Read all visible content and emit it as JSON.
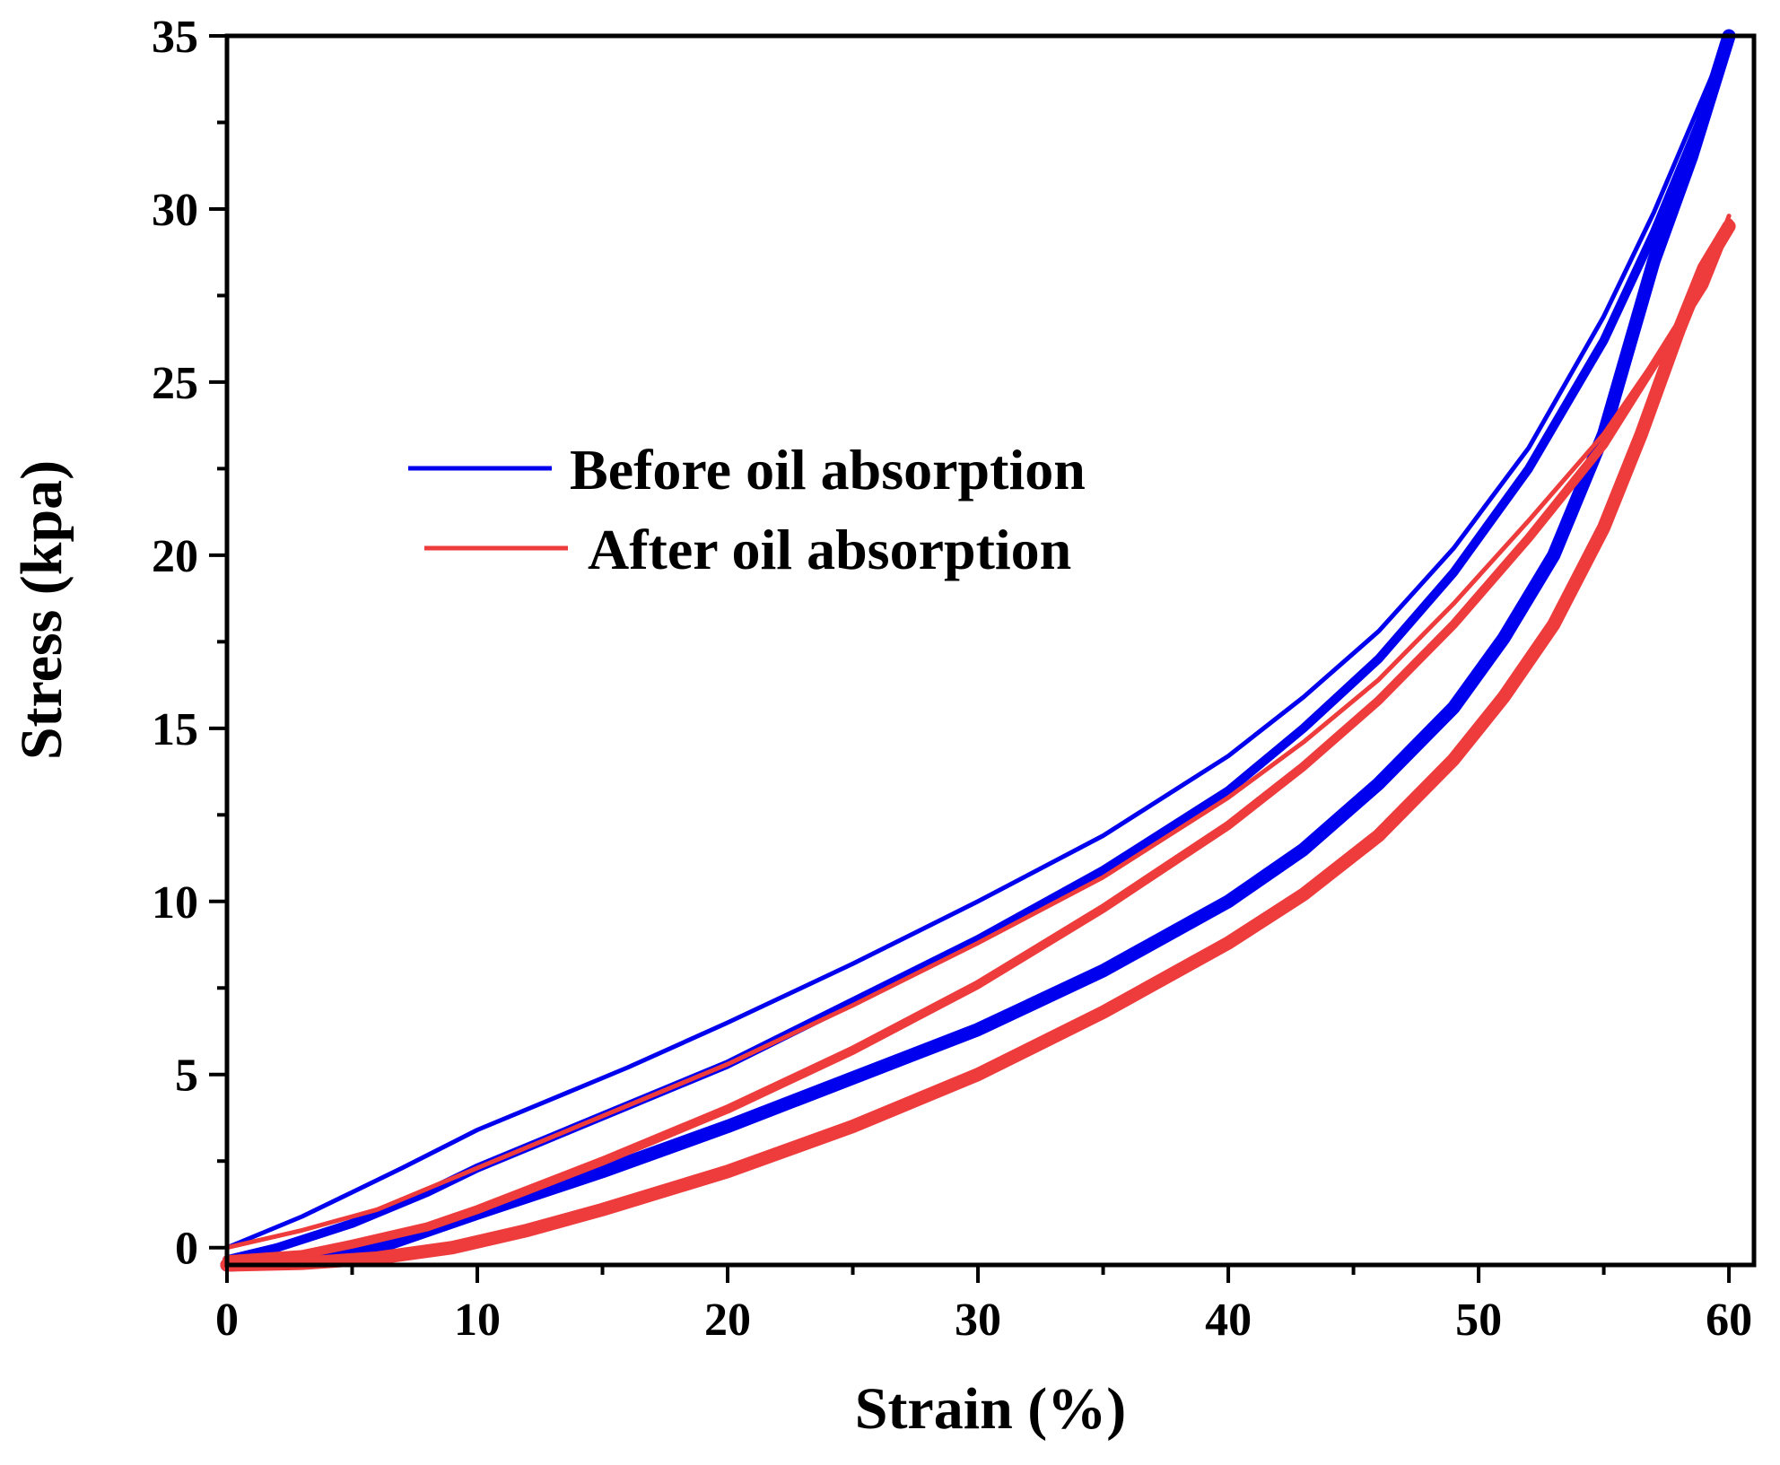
{
  "chart_data": {
    "type": "line",
    "title": "",
    "xlabel": "Strain (%)",
    "ylabel": "Stress (kpa)",
    "xlim": [
      0,
      61
    ],
    "ylim": [
      -0.5,
      35
    ],
    "xticks": [
      0,
      10,
      20,
      30,
      40,
      50,
      60
    ],
    "yticks": [
      0,
      5,
      10,
      15,
      20,
      25,
      30,
      35
    ],
    "grid": false,
    "legend_position": "upper-left-center",
    "series": [
      {
        "name": "Before oil absorption",
        "color": "#0000ee",
        "curves": [
          {
            "weight": "thin",
            "x": [
              0,
              3,
              5,
              7,
              10,
              13,
              16,
              20,
              25,
              30,
              35,
              40,
              43,
              46,
              49,
              52,
              55,
              57,
              59,
              60
            ],
            "y": [
              0,
              0.9,
              1.6,
              2.3,
              3.4,
              4.3,
              5.2,
              6.5,
              8.2,
              10.0,
              11.9,
              14.2,
              15.9,
              17.8,
              20.2,
              23.1,
              26.9,
              29.9,
              33.3,
              35.0
            ]
          },
          {
            "weight": "medium",
            "x": [
              0,
              2,
              5,
              8,
              10,
              13,
              16,
              20,
              25,
              30,
              35,
              40,
              43,
              46,
              49,
              52,
              55,
              57,
              59,
              60
            ],
            "y": [
              -0.35,
              0,
              0.7,
              1.6,
              2.3,
              3.2,
              4.1,
              5.3,
              7.1,
              8.9,
              10.9,
              13.2,
              15.0,
              17.0,
              19.5,
              22.5,
              26.2,
              29.3,
              32.8,
              35.0
            ]
          },
          {
            "weight": "thick",
            "x": [
              0,
              3,
              6,
              10,
              15,
              20,
              25,
              30,
              35,
              40,
              43,
              46,
              49,
              51,
              53,
              55,
              57,
              58.5,
              60
            ],
            "y": [
              -0.5,
              -0.4,
              0,
              1.0,
              2.2,
              3.5,
              4.9,
              6.3,
              8.0,
              10.0,
              11.5,
              13.4,
              15.6,
              17.6,
              20.0,
              23.5,
              28.5,
              31.5,
              35.0
            ]
          }
        ]
      },
      {
        "name": "After oil absorption",
        "color": "#ee3b3b",
        "curves": [
          {
            "weight": "thin",
            "x": [
              0,
              3,
              6,
              10,
              15,
              20,
              25,
              30,
              35,
              40,
              43,
              46,
              49,
              52,
              55,
              57,
              59,
              60
            ],
            "y": [
              0,
              0.5,
              1.1,
              2.3,
              3.8,
              5.3,
              7.0,
              8.8,
              10.7,
              13.0,
              14.6,
              16.4,
              18.6,
              21.0,
              23.5,
              25.6,
              27.9,
              29.8
            ]
          },
          {
            "weight": "medium",
            "x": [
              0,
              3,
              5,
              8,
              10,
              15,
              20,
              25,
              30,
              35,
              40,
              43,
              46,
              49,
              52,
              55,
              57,
              59,
              60
            ],
            "y": [
              -0.35,
              -0.2,
              0.1,
              0.6,
              1.1,
              2.5,
              4.0,
              5.7,
              7.6,
              9.8,
              12.2,
              13.9,
              15.8,
              18.0,
              20.5,
              23.2,
              25.5,
              27.8,
              29.6
            ]
          },
          {
            "weight": "thick",
            "x": [
              0,
              3,
              6,
              9,
              12,
              15,
              20,
              25,
              30,
              35,
              40,
              43,
              46,
              49,
              51,
              53,
              55,
              56.5,
              58,
              59,
              60
            ],
            "y": [
              -0.5,
              -0.45,
              -0.3,
              0,
              0.5,
              1.1,
              2.2,
              3.5,
              5.0,
              6.8,
              8.8,
              10.2,
              11.9,
              14.1,
              15.9,
              18.0,
              20.8,
              23.5,
              26.5,
              28.3,
              29.5
            ]
          }
        ]
      }
    ]
  }
}
